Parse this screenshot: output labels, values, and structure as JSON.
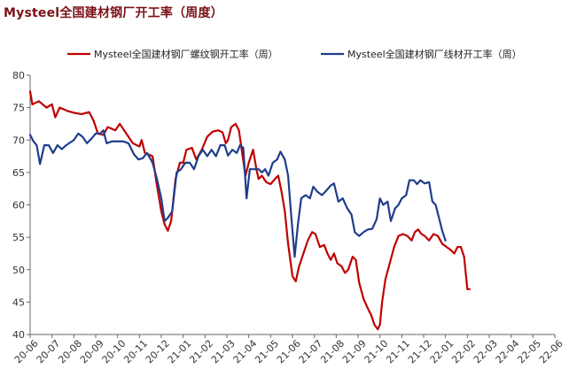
{
  "chart_data": {
    "type": "line",
    "title": "Mysteel全国建材钢厂开工率（周度）",
    "xlabel": "",
    "ylabel": "",
    "ylim": [
      40,
      80
    ],
    "yticks": [
      40,
      45,
      50,
      55,
      60,
      65,
      70,
      75,
      80
    ],
    "grid": false,
    "legend_position": "top",
    "x_tick_labels": [
      "20-06",
      "20-07",
      "20-08",
      "20-09",
      "20-10",
      "20-11",
      "20-12",
      "21-01",
      "21-02",
      "21-03",
      "21-04",
      "21-05",
      "21-06",
      "21-07",
      "21-08",
      "21-09",
      "21-10",
      "21-11",
      "21-12",
      "22-01",
      "22-02",
      "22-03",
      "22-04",
      "22-05",
      "22-06"
    ],
    "series": [
      {
        "name": "Mysteel全国建材钢厂螺纹钢开工率（周）",
        "color": "#c00000",
        "points": [
          [
            0.0,
            77.5
          ],
          [
            0.1,
            75.5
          ],
          [
            0.4,
            76.0
          ],
          [
            0.75,
            75.0
          ],
          [
            1.0,
            75.5
          ],
          [
            1.15,
            73.5
          ],
          [
            1.35,
            75.0
          ],
          [
            1.7,
            74.5
          ],
          [
            2.0,
            74.2
          ],
          [
            2.35,
            74.0
          ],
          [
            2.7,
            74.3
          ],
          [
            2.9,
            73.0
          ],
          [
            3.1,
            71.0
          ],
          [
            3.35,
            70.8
          ],
          [
            3.55,
            72.0
          ],
          [
            3.9,
            71.5
          ],
          [
            4.1,
            72.5
          ],
          [
            4.3,
            71.5
          ],
          [
            4.5,
            70.5
          ],
          [
            4.7,
            69.5
          ],
          [
            5.0,
            69.0
          ],
          [
            5.1,
            70.0
          ],
          [
            5.25,
            68.0
          ],
          [
            5.4,
            67.8
          ],
          [
            5.6,
            67.5
          ],
          [
            5.8,
            63.0
          ],
          [
            6.0,
            59.0
          ],
          [
            6.15,
            57.0
          ],
          [
            6.3,
            56.0
          ],
          [
            6.45,
            57.5
          ],
          [
            6.65,
            64.0
          ],
          [
            6.85,
            66.5
          ],
          [
            7.0,
            66.5
          ],
          [
            7.15,
            68.5
          ],
          [
            7.4,
            68.8
          ],
          [
            7.6,
            67.0
          ],
          [
            7.85,
            68.5
          ],
          [
            8.1,
            70.5
          ],
          [
            8.35,
            71.3
          ],
          [
            8.6,
            71.5
          ],
          [
            8.8,
            71.2
          ],
          [
            8.95,
            69.5
          ],
          [
            9.05,
            70.0
          ],
          [
            9.2,
            72.0
          ],
          [
            9.4,
            72.5
          ],
          [
            9.55,
            71.5
          ],
          [
            9.7,
            68.0
          ],
          [
            9.85,
            64.5
          ],
          [
            10.0,
            66.5
          ],
          [
            10.2,
            68.5
          ],
          [
            10.35,
            65.5
          ],
          [
            10.45,
            64.0
          ],
          [
            10.6,
            64.5
          ],
          [
            10.8,
            63.5
          ],
          [
            11.0,
            63.2
          ],
          [
            11.2,
            64.0
          ],
          [
            11.35,
            64.5
          ],
          [
            11.5,
            62.0
          ],
          [
            11.65,
            59.0
          ],
          [
            11.8,
            54.0
          ],
          [
            12.0,
            49.0
          ],
          [
            12.15,
            48.2
          ],
          [
            12.3,
            50.5
          ],
          [
            12.5,
            52.5
          ],
          [
            12.7,
            54.5
          ],
          [
            12.9,
            55.8
          ],
          [
            13.05,
            55.5
          ],
          [
            13.25,
            53.5
          ],
          [
            13.45,
            53.8
          ],
          [
            13.6,
            52.5
          ],
          [
            13.75,
            51.5
          ],
          [
            13.9,
            52.5
          ],
          [
            14.05,
            51.0
          ],
          [
            14.25,
            50.5
          ],
          [
            14.4,
            49.5
          ],
          [
            14.55,
            50.0
          ],
          [
            14.75,
            52.0
          ],
          [
            14.9,
            51.5
          ],
          [
            15.05,
            48.0
          ],
          [
            15.25,
            45.5
          ],
          [
            15.45,
            44.0
          ],
          [
            15.6,
            43.0
          ],
          [
            15.75,
            41.5
          ],
          [
            15.9,
            40.8
          ],
          [
            16.0,
            41.5
          ],
          [
            16.1,
            45.0
          ],
          [
            16.25,
            48.5
          ],
          [
            16.45,
            51.0
          ],
          [
            16.65,
            53.5
          ],
          [
            16.85,
            55.2
          ],
          [
            17.05,
            55.5
          ],
          [
            17.25,
            55.2
          ],
          [
            17.45,
            54.5
          ],
          [
            17.6,
            55.8
          ],
          [
            17.75,
            56.2
          ],
          [
            17.9,
            55.5
          ],
          [
            18.05,
            55.2
          ],
          [
            18.25,
            54.5
          ],
          [
            18.45,
            55.5
          ],
          [
            18.65,
            55.2
          ],
          [
            18.85,
            54.0
          ],
          [
            19.05,
            53.5
          ],
          [
            19.25,
            53.0
          ],
          [
            19.4,
            52.5
          ],
          [
            19.55,
            53.5
          ],
          [
            19.7,
            53.5
          ],
          [
            19.85,
            52.0
          ],
          [
            20.0,
            47.0
          ],
          [
            20.1,
            47.0
          ]
        ]
      },
      {
        "name": "Mysteel全国建材钢厂线材开工率（周）",
        "color": "#1f3d8c",
        "points": [
          [
            0.0,
            70.8
          ],
          [
            0.15,
            69.8
          ],
          [
            0.3,
            69.2
          ],
          [
            0.45,
            66.3
          ],
          [
            0.65,
            69.2
          ],
          [
            0.85,
            69.2
          ],
          [
            1.05,
            68.0
          ],
          [
            1.25,
            69.2
          ],
          [
            1.45,
            68.6
          ],
          [
            1.65,
            69.2
          ],
          [
            2.0,
            70.0
          ],
          [
            2.2,
            71.0
          ],
          [
            2.4,
            70.5
          ],
          [
            2.6,
            69.5
          ],
          [
            2.8,
            70.2
          ],
          [
            3.0,
            71.0
          ],
          [
            3.2,
            71.0
          ],
          [
            3.35,
            71.5
          ],
          [
            3.5,
            69.5
          ],
          [
            3.75,
            69.8
          ],
          [
            4.0,
            69.8
          ],
          [
            4.25,
            69.8
          ],
          [
            4.5,
            69.5
          ],
          [
            4.75,
            67.8
          ],
          [
            4.95,
            67.0
          ],
          [
            5.15,
            67.2
          ],
          [
            5.35,
            68.0
          ],
          [
            5.6,
            66.5
          ],
          [
            5.8,
            64.0
          ],
          [
            6.0,
            61.0
          ],
          [
            6.15,
            57.5
          ],
          [
            6.3,
            58.0
          ],
          [
            6.5,
            59.0
          ],
          [
            6.7,
            65.0
          ],
          [
            6.9,
            65.5
          ],
          [
            7.1,
            66.5
          ],
          [
            7.3,
            66.5
          ],
          [
            7.5,
            65.5
          ],
          [
            7.7,
            67.5
          ],
          [
            7.9,
            68.5
          ],
          [
            8.1,
            67.5
          ],
          [
            8.3,
            68.5
          ],
          [
            8.5,
            67.5
          ],
          [
            8.7,
            69.2
          ],
          [
            8.9,
            69.2
          ],
          [
            9.05,
            67.6
          ],
          [
            9.25,
            68.5
          ],
          [
            9.45,
            68.0
          ],
          [
            9.6,
            69.2
          ],
          [
            9.75,
            68.8
          ],
          [
            9.9,
            61.0
          ],
          [
            10.05,
            65.5
          ],
          [
            10.25,
            65.5
          ],
          [
            10.45,
            65.5
          ],
          [
            10.6,
            65.0
          ],
          [
            10.75,
            65.5
          ],
          [
            10.9,
            64.5
          ],
          [
            11.1,
            66.5
          ],
          [
            11.3,
            67.0
          ],
          [
            11.45,
            68.2
          ],
          [
            11.65,
            67.0
          ],
          [
            11.8,
            64.5
          ],
          [
            11.95,
            58.0
          ],
          [
            12.1,
            52.0
          ],
          [
            12.25,
            57.0
          ],
          [
            12.4,
            61.0
          ],
          [
            12.6,
            61.5
          ],
          [
            12.8,
            61.0
          ],
          [
            12.95,
            62.8
          ],
          [
            13.15,
            62.0
          ],
          [
            13.35,
            61.5
          ],
          [
            13.55,
            62.2
          ],
          [
            13.75,
            63.0
          ],
          [
            13.9,
            63.3
          ],
          [
            14.1,
            60.5
          ],
          [
            14.3,
            61.0
          ],
          [
            14.5,
            59.5
          ],
          [
            14.7,
            58.5
          ],
          [
            14.85,
            55.8
          ],
          [
            15.05,
            55.2
          ],
          [
            15.25,
            55.8
          ],
          [
            15.45,
            56.2
          ],
          [
            15.65,
            56.3
          ],
          [
            15.85,
            57.8
          ],
          [
            16.0,
            61.0
          ],
          [
            16.15,
            60.0
          ],
          [
            16.35,
            60.5
          ],
          [
            16.5,
            57.5
          ],
          [
            16.7,
            59.5
          ],
          [
            16.85,
            60.0
          ],
          [
            17.0,
            61.0
          ],
          [
            17.2,
            61.5
          ],
          [
            17.35,
            63.8
          ],
          [
            17.55,
            63.8
          ],
          [
            17.7,
            63.2
          ],
          [
            17.85,
            63.8
          ],
          [
            18.05,
            63.3
          ],
          [
            18.25,
            63.5
          ],
          [
            18.4,
            60.5
          ],
          [
            18.55,
            60.0
          ],
          [
            18.7,
            58.0
          ],
          [
            18.85,
            56.0
          ],
          [
            19.0,
            54.5
          ]
        ]
      }
    ]
  }
}
